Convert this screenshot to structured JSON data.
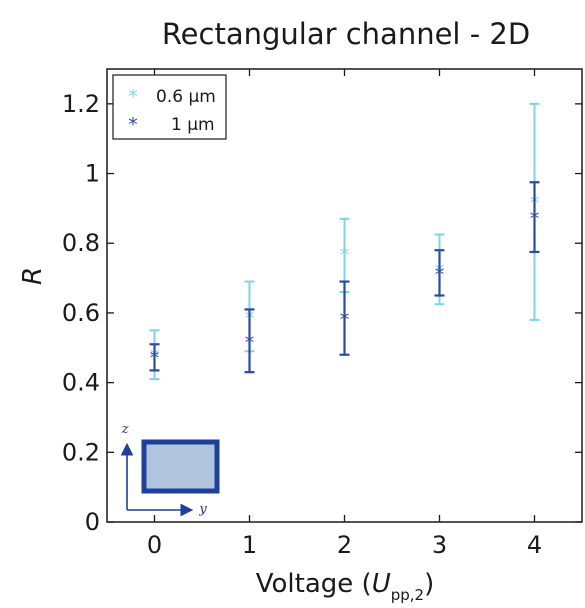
{
  "chart_data": {
    "type": "scatter",
    "title": "Rectangular channel - 2D",
    "xlabel_prefix": "Voltage (",
    "xlabel_var": "U",
    "xlabel_sub": "pp,2",
    "xlabel_suffix": ")",
    "ylabel": "R",
    "xlim": [
      -0.5,
      4.5
    ],
    "ylim": [
      0,
      1.3
    ],
    "xticks": [
      0,
      1,
      2,
      3,
      4
    ],
    "xtick_labels": [
      "0",
      "1",
      "2",
      "3",
      "4"
    ],
    "yticks": [
      0,
      0.2,
      0.4,
      0.6,
      0.8,
      1.0,
      1.2
    ],
    "ytick_labels": [
      "0",
      "0.2",
      "0.4",
      "0.6",
      "0.8",
      "1",
      "1.2"
    ],
    "grid": false,
    "legend_position": "top-left",
    "series": [
      {
        "name": "0.6 µm",
        "color": "#7fd3e3",
        "x": [
          0,
          1,
          2,
          3,
          4
        ],
        "y": [
          0.48,
          0.59,
          0.77,
          0.725,
          0.92
        ],
        "y_low": [
          0.41,
          0.49,
          0.66,
          0.625,
          0.58
        ],
        "y_high": [
          0.55,
          0.69,
          0.87,
          0.825,
          1.2
        ]
      },
      {
        "name": "1 µm",
        "color": "#2b4aa3",
        "x": [
          0,
          1,
          2,
          3,
          4
        ],
        "y": [
          0.475,
          0.52,
          0.585,
          0.715,
          0.875
        ],
        "y_low": [
          0.435,
          0.43,
          0.48,
          0.65,
          0.775
        ],
        "y_high": [
          0.51,
          0.61,
          0.69,
          0.78,
          0.975
        ]
      }
    ],
    "inset": {
      "z_label": "z",
      "y_label": "y",
      "fill_color": "#b0c4de",
      "border_color": "#1f3f99"
    }
  }
}
